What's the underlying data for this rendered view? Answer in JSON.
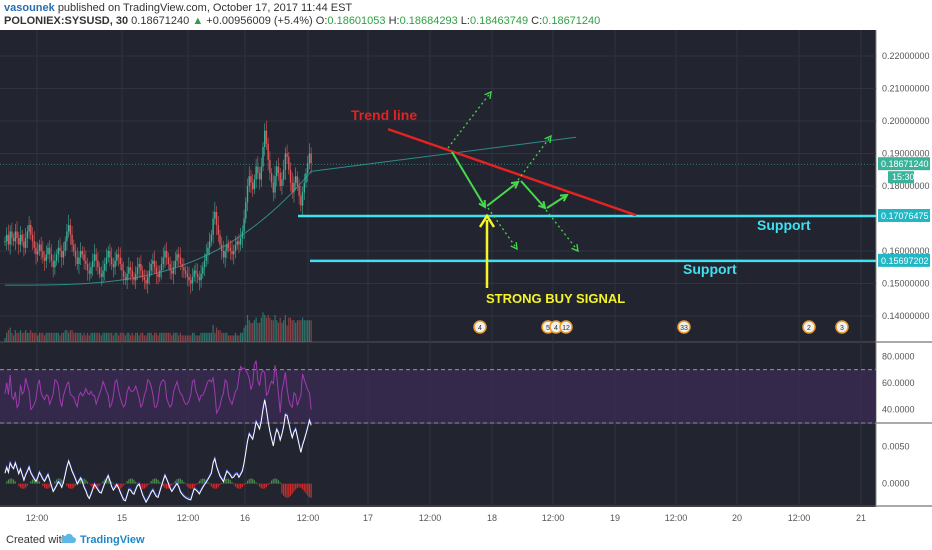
{
  "header": {
    "author": "vasounek",
    "published": "published on TradingView.com, October 17, 2017 11:44 EST",
    "symbol": "POLONIEX:SYSUSD, 30",
    "price": "0.18671240",
    "change_arrow": "▲",
    "change": "+0.00956009 (+5.4%)",
    "o_label": "O:",
    "o_val": "0.18601053",
    "h_label": "H:",
    "h_val": "0.18684293",
    "l_label": "L:",
    "l_val": "0.18463749",
    "c_label": "C:",
    "c_val": "0.18671240"
  },
  "footer": {
    "created_with": "Created with",
    "brand": "TradingView"
  },
  "colors": {
    "background": "#22252f",
    "grid": "#2f3340",
    "up": "#3bb39b",
    "down": "#e2575a",
    "trendline": "#e32222",
    "support": "#3fe1ef",
    "arrow_green": "#46d94a",
    "arrow_yellow": "#f5f52a",
    "rsi": "#a03bb0",
    "rsi_band": "#3a2a52",
    "macd": "#ffffff",
    "signal": "#3b4fd6"
  },
  "chart_data": [
    {
      "type": "candlestick",
      "title": "POLONIEX:SYSUSD, 30",
      "x_ticks": [
        "12:00",
        "15",
        "12:00",
        "16",
        "12:00",
        "17",
        "12:00",
        "18",
        "12:00",
        "19",
        "12:00",
        "20",
        "12:00",
        "21"
      ],
      "y_ticks": [
        "0.22000000",
        "0.21000000",
        "0.20000000",
        "0.19000000",
        "0.18000000",
        "0.16000000",
        "0.15000000",
        "0.14000000"
      ],
      "ylim": [
        0.132,
        0.228
      ],
      "price_labels": [
        {
          "name": "last",
          "value": 0.1867124,
          "text": "0.18671240",
          "sub": "15:30"
        },
        {
          "name": "support1",
          "value": 0.17076475,
          "text": "0.17076475"
        },
        {
          "name": "support2",
          "value": 0.15697202,
          "text": "0.15697202"
        }
      ],
      "annotations": {
        "trend": "Trend line",
        "support1": "Support",
        "support2": "Support",
        "signal": "STRONG BUY SIGNAL"
      },
      "trend_line": {
        "from": 0.1975,
        "to": 0.171
      },
      "event_badges": [
        "4",
        "5",
        "4",
        "12",
        "33",
        "2",
        "3"
      ],
      "candles": [
        0.163,
        0.165,
        0.162,
        0.166,
        0.164,
        0.163,
        0.166,
        0.164,
        0.162,
        0.165,
        0.163,
        0.161,
        0.164,
        0.166,
        0.168,
        0.165,
        0.163,
        0.161,
        0.159,
        0.16,
        0.162,
        0.16,
        0.158,
        0.157,
        0.159,
        0.161,
        0.159,
        0.157,
        0.155,
        0.157,
        0.159,
        0.161,
        0.16,
        0.158,
        0.16,
        0.163,
        0.166,
        0.168,
        0.165,
        0.162,
        0.16,
        0.158,
        0.156,
        0.158,
        0.16,
        0.159,
        0.157,
        0.156,
        0.154,
        0.153,
        0.155,
        0.157,
        0.159,
        0.157,
        0.155,
        0.153,
        0.152,
        0.154,
        0.156,
        0.158,
        0.16,
        0.158,
        0.156,
        0.155,
        0.157,
        0.159,
        0.158,
        0.156,
        0.154,
        0.152,
        0.151,
        0.153,
        0.155,
        0.154,
        0.152,
        0.151,
        0.153,
        0.155,
        0.156,
        0.154,
        0.152,
        0.151,
        0.15,
        0.152,
        0.154,
        0.156,
        0.157,
        0.155,
        0.153,
        0.152,
        0.154,
        0.156,
        0.158,
        0.16,
        0.158,
        0.156,
        0.154,
        0.153,
        0.155,
        0.157,
        0.159,
        0.158,
        0.156,
        0.155,
        0.154,
        0.153,
        0.152,
        0.151,
        0.15,
        0.152,
        0.154,
        0.153,
        0.152,
        0.151,
        0.153,
        0.155,
        0.157,
        0.159,
        0.161,
        0.163,
        0.165,
        0.17,
        0.172,
        0.168,
        0.165,
        0.162,
        0.16,
        0.158,
        0.16,
        0.162,
        0.161,
        0.16,
        0.159,
        0.16,
        0.162,
        0.163,
        0.162,
        0.164,
        0.166,
        0.17,
        0.175,
        0.18,
        0.183,
        0.181,
        0.179,
        0.182,
        0.186,
        0.184,
        0.182,
        0.186,
        0.192,
        0.197,
        0.193,
        0.188,
        0.184,
        0.181,
        0.178,
        0.183,
        0.186,
        0.184,
        0.18,
        0.182,
        0.185,
        0.19,
        0.189,
        0.185,
        0.181,
        0.178,
        0.181,
        0.183,
        0.18,
        0.177,
        0.174,
        0.178,
        0.181,
        0.184,
        0.187,
        0.19,
        0.187
      ]
    },
    {
      "type": "line",
      "name": "RSI",
      "y_ticks": [
        "80.0000",
        "60.0000",
        "40.0000"
      ],
      "ylim": [
        30,
        90
      ],
      "band": [
        30,
        70
      ]
    },
    {
      "type": "line",
      "name": "MACD",
      "y_ticks": [
        "0.0050",
        "0.0000"
      ],
      "ylim": [
        -0.003,
        0.008
      ]
    }
  ]
}
